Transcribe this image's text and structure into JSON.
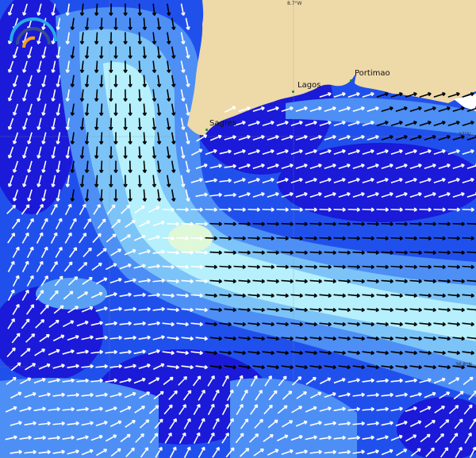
{
  "map": {
    "places": [
      {
        "name": "Sagres"
      },
      {
        "name": "Lagos"
      },
      {
        "name": "Portimao"
      }
    ],
    "grid_labels": {
      "lon": "8.7°W",
      "lat_top": "37°N",
      "lat_bottom": "36.8°N"
    },
    "colors": {
      "land": "#eed9a8",
      "deep": "#1a1ad8",
      "mid": "#2b5cf0",
      "light": "#5aa0f5",
      "pale": "#a8e8fb",
      "peak": "#e0ffe0",
      "arrow_strong": "#000000",
      "arrow_weak": "#ffffff"
    },
    "logo": "wave-logo-icon"
  }
}
